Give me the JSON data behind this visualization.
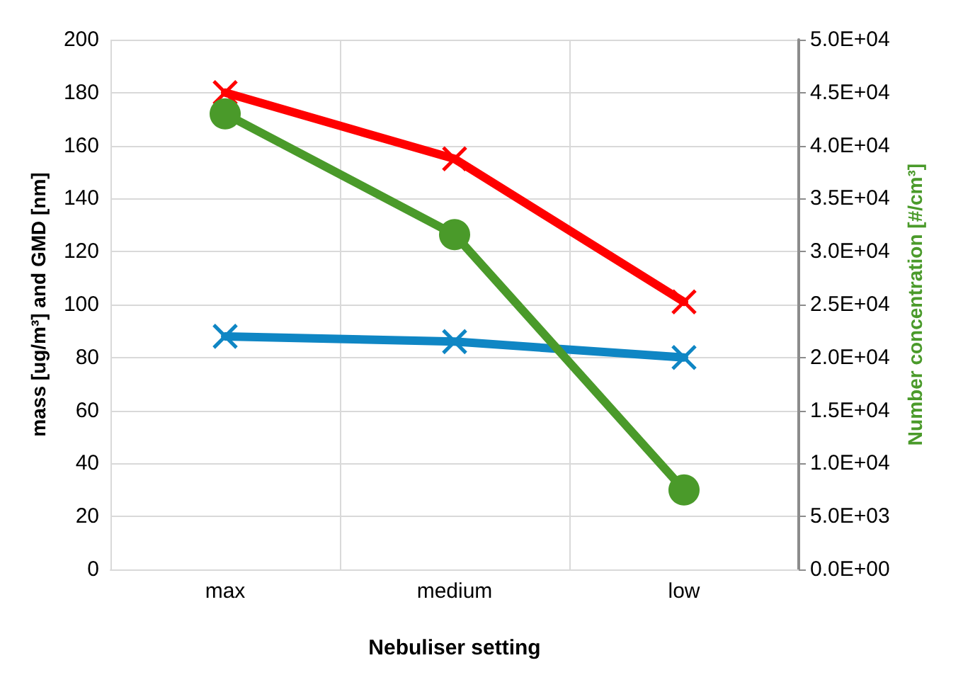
{
  "chart_data": {
    "type": "line",
    "xlabel": "Nebuliser setting",
    "ylabel": "mass [ug/m³] and GMD [nm]",
    "y2label": "Number concentration [#/cm³]",
    "categories": [
      "max",
      "medium",
      "low"
    ],
    "series": [
      {
        "color": "#ff0000",
        "values": [
          180,
          155,
          101
        ],
        "marker": "cross"
      },
      {
        "color": "#0f86c4",
        "values": [
          88,
          86,
          80
        ],
        "marker": "cross"
      },
      {
        "color": "#4a9a2a",
        "values": [
          43000,
          31600,
          7500
        ],
        "marker": "circle",
        "axis": "y2"
      }
    ],
    "ylim": [
      0,
      200
    ],
    "yticks": [
      0,
      20,
      40,
      60,
      80,
      100,
      120,
      140,
      160,
      180,
      200
    ],
    "y2lim": [
      0,
      50000
    ],
    "y2ticks": [
      {
        "value": 0,
        "label": "0.0E+00"
      },
      {
        "value": 5000,
        "label": "5.0E+03"
      },
      {
        "value": 10000,
        "label": "1.0E+04"
      },
      {
        "value": 15000,
        "label": "1.5E+04"
      },
      {
        "value": 20000,
        "label": "2.0E+04"
      },
      {
        "value": 25000,
        "label": "2.5E+04"
      },
      {
        "value": 30000,
        "label": "3.0E+04"
      },
      {
        "value": 35000,
        "label": "3.5E+04"
      },
      {
        "value": 40000,
        "label": "4.0E+04"
      },
      {
        "value": 45000,
        "label": "4.5E+04"
      },
      {
        "value": 50000,
        "label": "5.0E+04"
      }
    ],
    "grid": true,
    "line_style": "solid"
  }
}
